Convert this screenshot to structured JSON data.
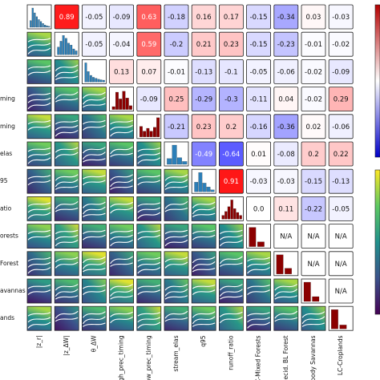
{
  "chart_data": {
    "type": "heatmap",
    "title": "",
    "variables": [
      "|z_r|",
      "|z_ΔW|",
      "θ_ΔW",
      "high_prec_timing",
      "low_prec_timing",
      "stream_elas",
      "q95",
      "runoff_ratio",
      "LC-Mixed Forests",
      "LC-Decid. BL Forest",
      "LC-Woody Savannas",
      "LC-Croplands"
    ],
    "column_labels": [
      "|z_r|",
      "|z_ΔW|",
      "θ_ΔW",
      "high_prec_timing",
      "low_prec_timing",
      "stream_elas",
      "q95",
      "runoff_ratio",
      "LC-Mixed Forests",
      "LC-Decid. BL Forest",
      "LC-Woody Savannas",
      "LC-Croplands"
    ],
    "row_labels_visible": [
      "",
      "",
      "",
      "ming",
      "ming",
      "elas",
      "95",
      "atio",
      "orests",
      "Forest",
      "avannas",
      "ands"
    ],
    "upper_triangle_correlations": [
      [
        null,
        0.89,
        -0.05,
        -0.09,
        0.63,
        -0.18,
        0.16,
        0.17,
        -0.15,
        -0.34,
        0.03,
        -0.03
      ],
      [
        null,
        null,
        -0.05,
        -0.04,
        0.59,
        -0.2,
        0.21,
        0.23,
        -0.15,
        -0.23,
        -0.01,
        -0.02
      ],
      [
        null,
        null,
        null,
        0.13,
        0.07,
        -0.01,
        -0.13,
        -0.1,
        -0.05,
        -0.06,
        -0.02,
        -0.09
      ],
      [
        null,
        null,
        null,
        null,
        -0.09,
        0.25,
        -0.29,
        -0.3,
        -0.11,
        0.04,
        -0.02,
        0.29
      ],
      [
        null,
        null,
        null,
        null,
        null,
        -0.21,
        0.23,
        0.2,
        -0.16,
        -0.36,
        0.02,
        -0.06
      ],
      [
        null,
        null,
        null,
        null,
        null,
        null,
        -0.49,
        -0.64,
        0.01,
        -0.08,
        0.2,
        0.22
      ],
      [
        null,
        null,
        null,
        null,
        null,
        null,
        null,
        0.91,
        -0.03,
        -0.03,
        -0.15,
        -0.13
      ],
      [
        null,
        null,
        null,
        null,
        null,
        null,
        null,
        null,
        0.0,
        0.11,
        -0.22,
        -0.05
      ],
      [
        null,
        null,
        null,
        null,
        null,
        null,
        null,
        null,
        null,
        "N/A",
        "N/A",
        "N/A"
      ],
      [
        null,
        null,
        null,
        null,
        null,
        null,
        null,
        null,
        null,
        null,
        "N/A",
        "N/A"
      ],
      [
        null,
        null,
        null,
        null,
        null,
        null,
        null,
        null,
        null,
        null,
        null,
        "N/A"
      ],
      [
        null,
        null,
        null,
        null,
        null,
        null,
        null,
        null,
        null,
        null,
        null,
        null
      ]
    ],
    "diagonal_histograms": [
      [
        0.35,
        1.0,
        0.75,
        0.55,
        0.4,
        0.3,
        0.2,
        0.12,
        0.08,
        0.05
      ],
      [
        0.4,
        0.7,
        1.0,
        0.85,
        0.6,
        0.5,
        0.3,
        0.2
      ],
      [
        1.0,
        0.55,
        0.35,
        0.25,
        0.2,
        0.15,
        0.12,
        0.1
      ],
      [
        0.15,
        0.9,
        0.55,
        0.95,
        0.6,
        0.2
      ],
      [
        0.55,
        0.3,
        0.45,
        0.3,
        0.5,
        1.0
      ],
      [
        0.3,
        1.0,
        0.35,
        0.15
      ],
      [
        0.5,
        1.0,
        0.45,
        0.25,
        0.1
      ],
      [
        0.2,
        0.4,
        0.65,
        1.0,
        0.55,
        0.35,
        0.2
      ],
      [
        1.0,
        0.25
      ],
      [
        1.0,
        0.3
      ],
      [
        1.0,
        0.25
      ],
      [
        1.0,
        0.2
      ]
    ],
    "colormap": "bwr",
    "colorbar_range": [
      -1,
      1
    ],
    "colors": {
      "positive": "#b40000",
      "negative": "#0000c8",
      "histogram_blue": "#2c7fb8",
      "histogram_red": "#8b0000"
    }
  }
}
